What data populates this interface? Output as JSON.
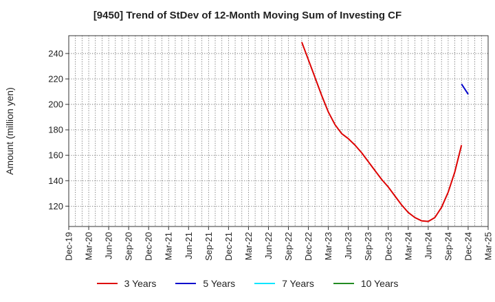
{
  "chart_data": {
    "type": "line",
    "title": "[9450]  Trend of StDev of 12-Month Moving Sum of Investing CF",
    "ylabel": "Amount (million yen)",
    "xlabel": "",
    "ylim": [
      104,
      254
    ],
    "yticks": [
      120,
      140,
      160,
      180,
      200,
      220,
      240
    ],
    "x_tick_labels": [
      "Dec-19",
      "Mar-20",
      "Jun-20",
      "Sep-20",
      "Dec-20",
      "Mar-21",
      "Jun-21",
      "Sep-21",
      "Dec-21",
      "Mar-22",
      "Jun-22",
      "Sep-22",
      "Dec-22",
      "Mar-23",
      "Jun-23",
      "Sep-23",
      "Dec-23",
      "Mar-24",
      "Jun-24",
      "Sep-24",
      "Dec-24",
      "Mar-25"
    ],
    "x_range": [
      "2019-12",
      "2025-03"
    ],
    "grid": true,
    "legend_position": "bottom",
    "series": [
      {
        "name": "3 Years",
        "color": "#dd0000",
        "x": [
          "2022-11",
          "2022-12",
          "2023-01",
          "2023-02",
          "2023-03",
          "2023-04",
          "2023-05",
          "2023-06",
          "2023-07",
          "2023-08",
          "2023-09",
          "2023-10",
          "2023-11",
          "2023-12",
          "2024-01",
          "2024-02",
          "2024-03",
          "2024-04",
          "2024-05",
          "2024-06",
          "2024-07",
          "2024-08",
          "2024-09",
          "2024-10",
          "2024-11",
          "2024-12"
        ],
        "values": [
          249,
          235,
          221,
          207,
          194,
          184,
          177,
          173,
          168,
          162,
          155,
          148,
          141,
          135,
          128,
          121,
          115,
          111,
          108.5,
          108,
          111,
          119,
          131,
          147,
          168,
          null
        ]
      },
      {
        "name": "5 Years",
        "color": "#0000cc",
        "x": [
          "2024-11",
          "2024-12"
        ],
        "values": [
          216,
          208
        ]
      },
      {
        "name": "7 Years",
        "color": "#00e5ff",
        "x": [],
        "values": []
      },
      {
        "name": "10 Years",
        "color": "#228b22",
        "x": [],
        "values": []
      }
    ]
  }
}
